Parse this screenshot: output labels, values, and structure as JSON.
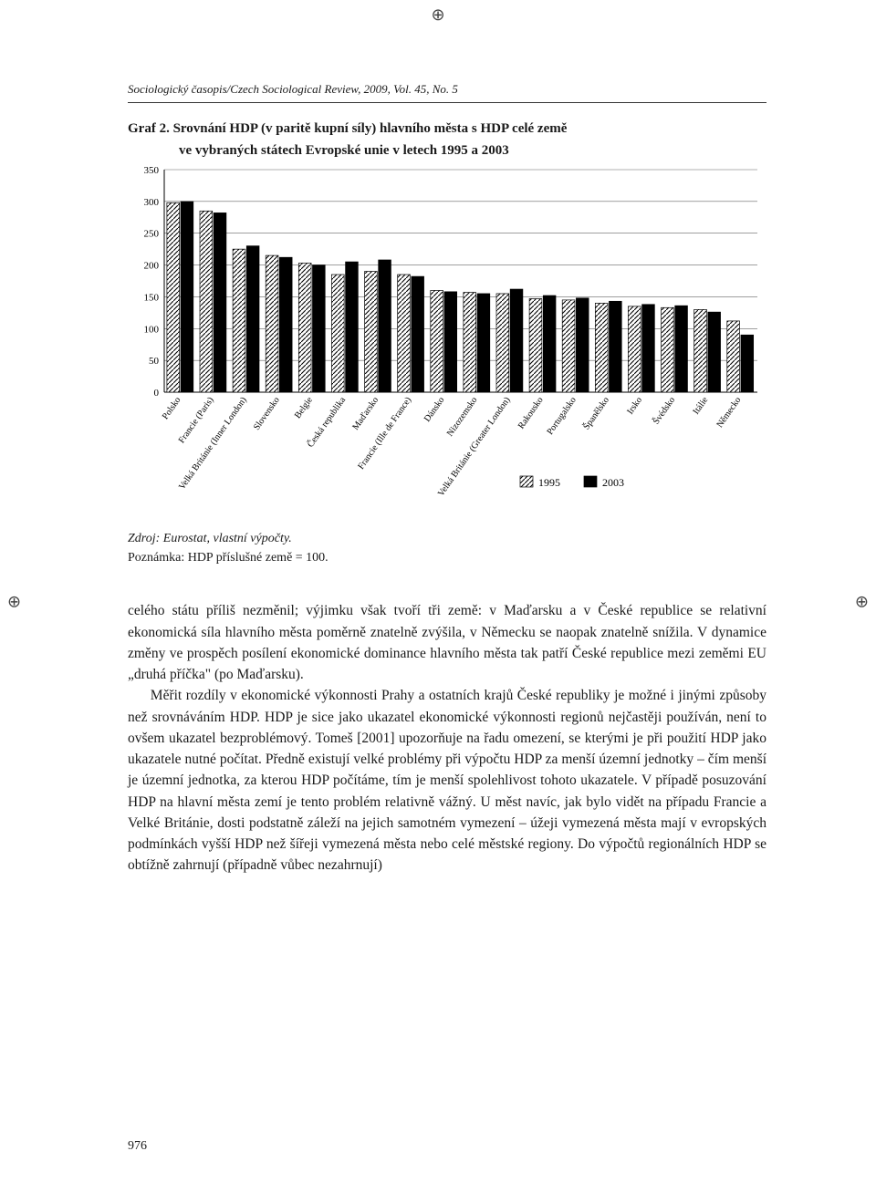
{
  "journal_header": "Sociologický časopis/Czech Sociological Review, 2009, Vol. 45, No. 5",
  "chart_label": "Graf 2.",
  "chart_title": "Srovnání HDP (v paritě kupní síly) hlavního města s HDP celé země",
  "chart_subtitle": "ve vybraných státech Evropské unie v letech 1995 a 2003",
  "source": "Zdroj: Eurostat, vlastní výpočty.",
  "note": "Poznámka: HDP příslušné země = 100.",
  "legend": {
    "series_a": "1995",
    "series_b": "2003"
  },
  "chart": {
    "type": "bar",
    "ylim": [
      0,
      350
    ],
    "ytick_step": 50,
    "yticks": [
      "0",
      "50",
      "100",
      "150",
      "200",
      "250",
      "300",
      "350"
    ],
    "categories": [
      "Polsko",
      "Francie (Paris)",
      "Velká Británie (Inner London)",
      "Slovensko",
      "Belgie",
      "Česká republika",
      "Maďarsko",
      "Francie (Ille de France)",
      "Dánsko",
      "Nizozemsko",
      "Velká Británie (Greater London)",
      "Rakousko",
      "Portugalsko",
      "Španělsko",
      "Irsko",
      "Švédsko",
      "Itálie",
      "Německo"
    ],
    "series": [
      {
        "name": "1995",
        "pattern": "hatch",
        "color": "#000000",
        "values": [
          298,
          285,
          225,
          215,
          203,
          185,
          190,
          185,
          160,
          157,
          155,
          147,
          145,
          140,
          135,
          133,
          130,
          112
        ]
      },
      {
        "name": "2003",
        "pattern": "solid",
        "color": "#000000",
        "values": [
          300,
          282,
          230,
          212,
          200,
          205,
          208,
          182,
          158,
          155,
          162,
          152,
          148,
          143,
          138,
          136,
          126,
          90
        ]
      }
    ],
    "background_color": "#ffffff",
    "grid_color": "#666666",
    "axis_color": "#000000",
    "bar_width": 0.38,
    "label_fontsize": 10,
    "tick_fontsize": 11
  },
  "para1": "celého státu příliš nezměnil; výjimku však tvoří tři země: v Maďarsku a v České republice se relativní ekonomická síla hlavního města poměrně znatelně zvýšila, v Německu se naopak znatelně snížila. V dynamice změny ve prospěch posílení ekonomické dominance hlavního města tak patří České republice mezi zeměmi EU „druhá příčka\" (po Maďarsku).",
  "para2": "Měřit rozdíly v ekonomické výkonnosti Prahy a ostatních krajů České republiky je možné i jinými způsoby než srovnáváním HDP. HDP je sice jako ukazatel ekonomické výkonnosti regionů nejčastěji používán, není to ovšem ukazatel bezproblémový. Tomeš [2001] upozorňuje na řadu omezení, se kterými je při použití HDP jako ukazatele nutné počítat. Předně existují velké problémy při výpočtu HDP za menší územní jednotky – čím menší je územní jednotka, za kterou HDP počítáme, tím je menší spolehlivost tohoto ukazatele. V případě posuzování HDP na hlavní města zemí je tento problém relativně vážný. U měst navíc, jak bylo vidět na případu Francie a Velké Británie, dosti podstatně záleží na jejich samotném vymezení – úžeji vymezená města mají v evropských podmínkách vyšší HDP než šířeji vymezená města nebo celé městské regiony. Do výpočtů regionálních HDP se obtížně zahrnují (případně vůbec nezahrnují)",
  "page_num": "976"
}
